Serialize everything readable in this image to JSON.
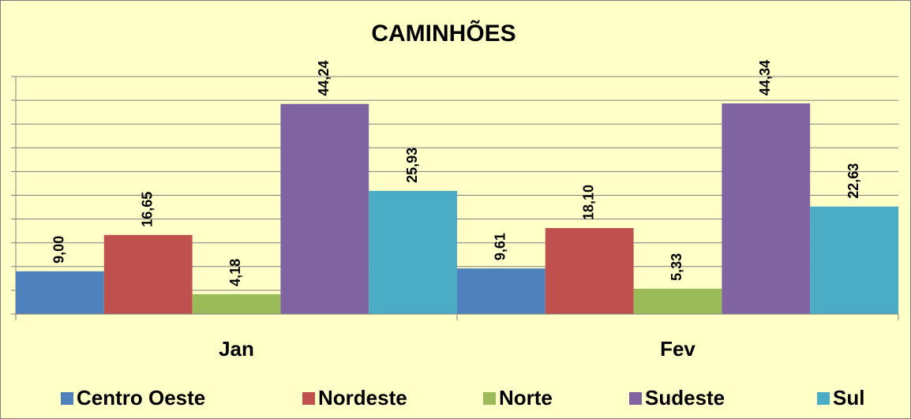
{
  "chart_data": {
    "type": "bar",
    "title": "CAMINHÕES",
    "categories": [
      "Jan",
      "Fev"
    ],
    "series": [
      {
        "name": "Centro Oeste",
        "color": "#4f81bd",
        "values": [
          9.0,
          9.61
        ],
        "value_labels": [
          "9,00",
          "9,61"
        ]
      },
      {
        "name": "Nordeste",
        "color": "#c0504d",
        "values": [
          16.65,
          18.1
        ],
        "value_labels": [
          "16,65",
          "18,10"
        ]
      },
      {
        "name": "Norte",
        "color": "#9bbb59",
        "values": [
          4.18,
          5.33
        ],
        "value_labels": [
          "4,18",
          "5,33"
        ]
      },
      {
        "name": "Sudeste",
        "color": "#8064a2",
        "values": [
          44.24,
          44.34
        ],
        "value_labels": [
          "44,24",
          "44,34"
        ]
      },
      {
        "name": "Sul",
        "color": "#4bacc6",
        "values": [
          25.93,
          22.63
        ],
        "value_labels": [
          "25,93",
          "22,63"
        ]
      }
    ],
    "ylim": [
      0,
      50
    ],
    "yticks": [
      0,
      5,
      10,
      15,
      20,
      25,
      30,
      35,
      40,
      45,
      50
    ],
    "grid": true,
    "legend": "bottom"
  }
}
